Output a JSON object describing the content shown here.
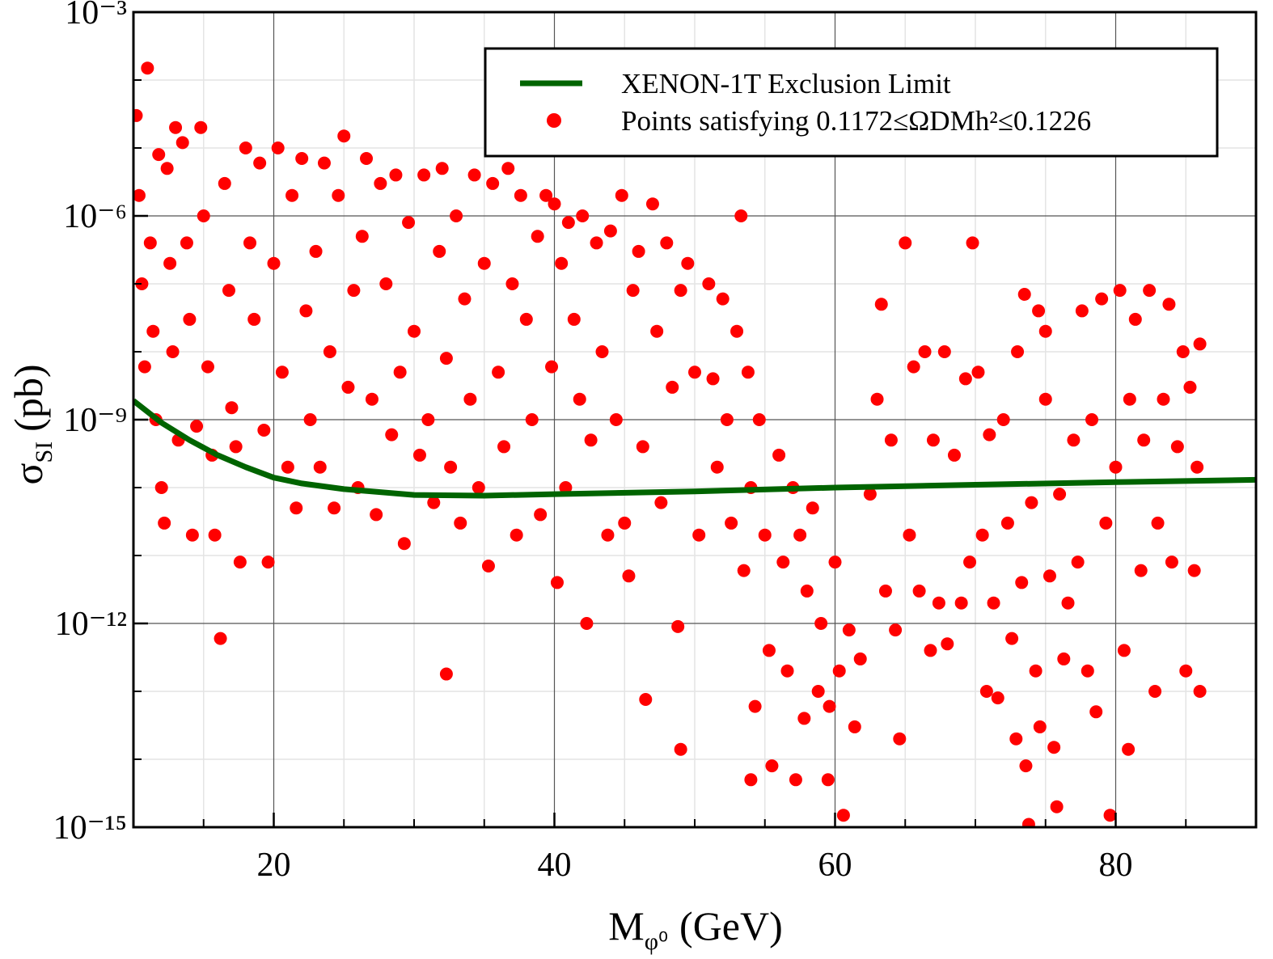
{
  "chart_data": {
    "type": "scatter",
    "x_label": {
      "symbol": "M",
      "subscript": "φ⁰",
      "unit": "(GeV)"
    },
    "y_label": {
      "symbol": "σ",
      "subscript": "SI",
      "unit": "(pb)"
    },
    "xlim": [
      10,
      90
    ],
    "xticks": [
      20,
      40,
      60,
      80
    ],
    "xminorticks": [
      10,
      15,
      25,
      30,
      35,
      45,
      50,
      55,
      65,
      70,
      75,
      85,
      90
    ],
    "ylim": [
      1e-15,
      0.001
    ],
    "log_y": true,
    "yticks": [
      {
        "value": 0.001,
        "label": "10⁻³"
      },
      {
        "value": 1e-06,
        "label": "10⁻⁶"
      },
      {
        "value": 1e-09,
        "label": "10⁻⁹"
      },
      {
        "value": 1e-12,
        "label": "10⁻¹²"
      },
      {
        "value": 1e-15,
        "label": "10⁻¹⁵"
      }
    ],
    "yminorticks": [
      0.0001,
      1e-05,
      1e-07,
      1e-08,
      1e-10,
      1e-11,
      1e-13,
      1e-14
    ],
    "grid": true,
    "legend": "upper right",
    "series": [
      {
        "name": "XENON-1T Exclusion Limit",
        "type": "line",
        "color": "#006400",
        "x": [
          10,
          12,
          14,
          16,
          18,
          20,
          22,
          25,
          30,
          35,
          40,
          50,
          60,
          70,
          80,
          90
        ],
        "values": [
          1.9e-09,
          9e-10,
          5e-10,
          3e-10,
          2e-10,
          1.4e-10,
          1.15e-10,
          9.5e-11,
          7.8e-11,
          7.6e-11,
          8e-11,
          8.8e-11,
          1e-10,
          1.1e-10,
          1.2e-10,
          1.3e-10
        ]
      },
      {
        "name": "Points satisfying 0.1172≤ΩDMh²≤0.1226",
        "type": "scatter",
        "color": "#ff0000",
        "x": [
          10.2,
          10.4,
          10.6,
          10.8,
          11,
          11.2,
          11.4,
          11.6,
          11.8,
          12,
          12.2,
          12.4,
          12.6,
          12.8,
          13,
          13.2,
          13.5,
          13.8,
          14,
          14.2,
          14.5,
          14.8,
          15,
          15.3,
          15.6,
          15.8,
          16.2,
          16.5,
          16.8,
          17,
          17.3,
          17.6,
          18,
          18.3,
          18.6,
          19,
          19.3,
          19.6,
          20,
          20.3,
          20.6,
          21,
          21.3,
          21.6,
          22,
          22.3,
          22.6,
          23,
          23.3,
          23.6,
          24,
          24.3,
          24.6,
          25,
          25.3,
          25.7,
          26,
          26.3,
          26.6,
          27,
          27.3,
          27.6,
          28,
          28.4,
          28.7,
          29,
          29.3,
          29.6,
          30,
          30.4,
          30.7,
          31,
          31.4,
          31.8,
          32,
          32.3,
          32.6,
          32.3,
          33,
          33.3,
          33.6,
          34,
          34.3,
          34.6,
          35,
          35.3,
          35.6,
          36,
          36.4,
          36.7,
          37,
          37.3,
          37.6,
          38,
          38.4,
          38.8,
          39,
          39.4,
          39.8,
          40,
          40.2,
          40.5,
          40.8,
          41,
          41.4,
          41.8,
          42,
          42.3,
          42.6,
          43,
          43.4,
          43.8,
          44,
          44.4,
          44.8,
          45,
          45.3,
          45.6,
          46,
          46.3,
          46.5,
          47,
          47.3,
          47.6,
          48,
          48.4,
          48.8,
          49,
          49,
          49.5,
          50,
          50.3,
          51,
          51.3,
          51.6,
          52,
          52.3,
          52.6,
          53,
          53.3,
          53.5,
          53.8,
          54,
          54.3,
          54,
          54.6,
          55,
          55.3,
          55.5,
          56,
          56.3,
          56.6,
          57,
          57.2,
          57.5,
          57.8,
          58,
          58.4,
          58.8,
          59,
          59.5,
          59.6,
          60,
          60.3,
          60.6,
          61,
          61.4,
          61.8,
          62.5,
          63,
          63.3,
          63.6,
          64,
          64.3,
          64.6,
          65,
          65.3,
          65.6,
          66,
          66.4,
          66.8,
          67,
          67.4,
          67.8,
          68,
          68.5,
          69,
          69.3,
          69.6,
          69.8,
          70.2,
          70.5,
          70.8,
          71,
          71.3,
          71.6,
          72,
          72.3,
          72.6,
          72.9,
          73,
          73.3,
          73.6,
          73.8,
          74,
          74.3,
          74.6,
          75,
          75.3,
          75.6,
          75.8,
          76,
          76.3,
          76.6,
          75,
          74.5,
          73.5,
          77,
          77.3,
          77.6,
          78,
          78.3,
          78.6,
          79,
          79.3,
          79.6,
          80,
          80.3,
          80.6,
          80.9,
          81,
          81.4,
          81.8,
          82,
          82.4,
          82.8,
          83,
          83.4,
          83.8,
          84,
          84.4,
          84.8,
          85,
          85.3,
          85.6,
          85.8,
          86,
          86
        ],
        "values": [
          3e-05,
          2e-06,
          1e-07,
          6e-09,
          0.00015,
          4e-07,
          2e-08,
          1e-09,
          8e-06,
          1e-10,
          3e-11,
          5e-06,
          2e-07,
          1e-08,
          2e-05,
          5e-10,
          1.2e-05,
          4e-07,
          3e-08,
          2e-11,
          8e-10,
          2e-05,
          1e-06,
          6e-09,
          3e-10,
          2e-11,
          6e-13,
          3e-06,
          8e-08,
          1.5e-09,
          4e-10,
          8e-12,
          1e-05,
          4e-07,
          3e-08,
          6e-06,
          7e-10,
          8e-12,
          2e-07,
          1e-05,
          5e-09,
          2e-10,
          2e-06,
          5e-11,
          7e-06,
          4e-08,
          1e-09,
          3e-07,
          2e-10,
          6e-06,
          1e-08,
          5e-11,
          2e-06,
          1.5e-05,
          3e-09,
          8e-08,
          1e-10,
          5e-07,
          7e-06,
          2e-09,
          4e-11,
          3e-06,
          1e-07,
          6e-10,
          4e-06,
          5e-09,
          1.5e-11,
          8e-07,
          2e-08,
          3e-10,
          4e-06,
          1e-09,
          6e-11,
          3e-07,
          5e-06,
          8e-09,
          2e-10,
          1.8e-13,
          1e-06,
          3e-11,
          6e-08,
          2e-09,
          4e-06,
          1e-10,
          2e-07,
          7e-12,
          3e-06,
          5e-09,
          4e-10,
          5e-06,
          1e-07,
          2e-11,
          2e-06,
          3e-08,
          1e-09,
          5e-07,
          4e-11,
          2e-06,
          6e-09,
          1.5e-06,
          4e-12,
          2e-07,
          1e-10,
          8e-07,
          3e-08,
          2e-09,
          1e-06,
          1e-12,
          5e-10,
          4e-07,
          1e-08,
          2e-11,
          6e-07,
          1e-09,
          2e-06,
          3e-11,
          5e-12,
          8e-08,
          3e-07,
          4e-10,
          7.6e-14,
          1.5e-06,
          2e-08,
          6e-11,
          4e-07,
          3e-09,
          9e-13,
          8e-08,
          1.4e-14,
          2e-07,
          5e-09,
          2e-11,
          1e-07,
          4e-09,
          2e-10,
          6e-08,
          1e-09,
          3e-11,
          2e-08,
          1e-06,
          6e-12,
          5e-09,
          1e-10,
          6e-14,
          5e-15,
          1e-09,
          2e-11,
          4e-13,
          8e-15,
          3e-10,
          8e-12,
          2e-13,
          1e-10,
          5e-15,
          2e-11,
          4e-14,
          3e-12,
          5e-11,
          1e-13,
          1e-12,
          5e-15,
          6e-14,
          8e-12,
          2e-13,
          1.5e-15,
          8e-13,
          3e-14,
          3e-13,
          8e-11,
          2e-09,
          5e-08,
          3e-12,
          5e-10,
          8e-13,
          2e-14,
          4e-07,
          2e-11,
          6e-09,
          3e-12,
          1e-08,
          4e-13,
          5e-10,
          2e-12,
          1e-08,
          5e-13,
          3e-10,
          2e-12,
          4e-09,
          8e-12,
          4e-07,
          5e-09,
          2e-11,
          1e-13,
          6e-10,
          2e-12,
          8e-14,
          1e-09,
          3e-11,
          6e-13,
          2e-14,
          1e-08,
          4e-12,
          8e-15,
          1.1e-15,
          6e-11,
          2e-13,
          3e-14,
          2e-09,
          5e-12,
          1.5e-14,
          2e-15,
          8e-11,
          3e-13,
          2e-12,
          2e-08,
          4e-08,
          7e-08,
          5e-10,
          8e-12,
          4e-08,
          2e-13,
          1e-09,
          5e-14,
          6e-08,
          3e-11,
          1.5e-15,
          2e-10,
          8e-08,
          4e-13,
          1.4e-14,
          2e-09,
          3e-08,
          6e-12,
          5e-10,
          8e-08,
          1e-13,
          3e-11,
          2e-09,
          5e-08,
          8e-12,
          4e-10,
          1e-08,
          2e-13,
          3e-09,
          6e-12,
          2e-10,
          1.3e-08,
          1e-13
        ]
      }
    ]
  }
}
